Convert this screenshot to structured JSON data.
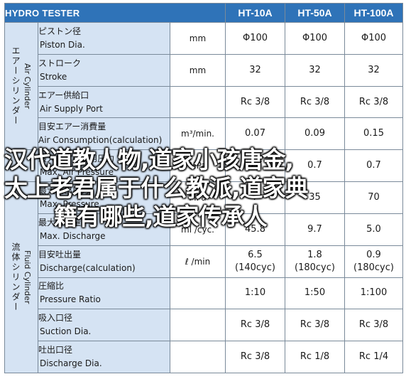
{
  "header": {
    "title": "HYDRO TESTER",
    "models": [
      "HT-10A",
      "HT-50A",
      "HT-100A"
    ]
  },
  "groups": {
    "air": {
      "jp": "エアーシリンダー",
      "en": "Air Cylinder"
    },
    "fluid": {
      "jp": "流体シリンダー",
      "en": "Fluid Cylinder"
    }
  },
  "rows": [
    {
      "jp": "ピストン径",
      "en": "Piston Dia.",
      "unit": "mm",
      "values": [
        "Φ100",
        "Φ100",
        "Φ100"
      ]
    },
    {
      "jp": "ストローク",
      "en": "Stroke",
      "unit": "mm",
      "values": [
        "32",
        "32",
        "32"
      ]
    },
    {
      "jp": "エアー供給口",
      "en": "Air Supply Port",
      "unit": "",
      "values": [
        "Rc 3/8",
        "Rc 3/8",
        "Rc 3/8"
      ]
    },
    {
      "jp": "目安エアー消費量",
      "en": "Air Consumption(calculation)",
      "unit": "m³/min.",
      "values": [
        "0.07",
        "0.09",
        "0.15"
      ]
    },
    {
      "jp": "最大エアー使用圧力",
      "en": "Max. Air Pressure",
      "unit": "MPa",
      "values": [
        "0.7",
        "0.7",
        "0.7"
      ]
    },
    {
      "jp": "最大吐出圧力",
      "en": "Max. Pressure",
      "unit": "MPa",
      "values": [
        "7",
        "35",
        "70"
      ]
    },
    {
      "jp": "最大吐出量",
      "en": "Max. Discharge",
      "unit": "ml /cyc.",
      "values": [
        "45.8",
        "9.7",
        "5.0"
      ]
    },
    {
      "jp": "目安吐出量",
      "en": "Discharge(calculation)",
      "unit": "ℓ /min",
      "values": [
        "6.5",
        "1.8",
        "0.9"
      ],
      "cyc": [
        "(140cyc)",
        "(180cyc)",
        "(180cyc)"
      ]
    },
    {
      "jp": "圧縮比",
      "en": "Pressure Ratio",
      "unit": "",
      "values": [
        "1:10",
        "1:50",
        "1:100"
      ]
    },
    {
      "jp": "吸入口径",
      "en": "Suction Dia.",
      "unit": "",
      "values": [
        "Rc 3/8",
        "Rc 3/8",
        "Rc 3/8"
      ]
    },
    {
      "jp": "吐出口径",
      "en": "Discharge Dia.",
      "unit": "",
      "values": [
        "Rc 3/8",
        "Rc 1/8",
        "Rc 1/4"
      ]
    }
  ],
  "overlay": {
    "line1": "汉代道教人物,道家小孩唐金,",
    "line2": "太上老君属于什么教派,道家典",
    "line3": "籍有哪些,道家传承人"
  }
}
